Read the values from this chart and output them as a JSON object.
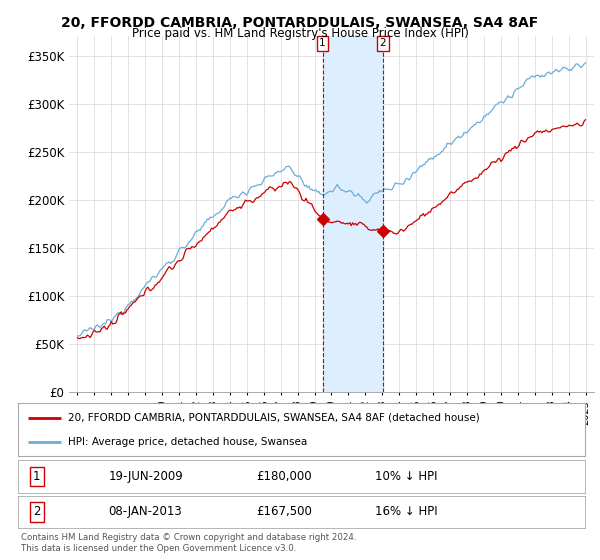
{
  "title": "20, FFORDD CAMBRIA, PONTARDDULAIS, SWANSEA, SA4 8AF",
  "subtitle": "Price paid vs. HM Land Registry's House Price Index (HPI)",
  "ylim": [
    0,
    370000
  ],
  "yticks": [
    0,
    50000,
    100000,
    150000,
    200000,
    250000,
    300000,
    350000
  ],
  "ytick_labels": [
    "£0",
    "£50K",
    "£100K",
    "£150K",
    "£200K",
    "£250K",
    "£300K",
    "£350K"
  ],
  "hpi_color": "#6baed6",
  "price_color": "#cc0000",
  "sale1_date": 2009.47,
  "sale1_price": 180000,
  "sale2_date": 2013.03,
  "sale2_price": 167500,
  "legend_line1": "20, FFORDD CAMBRIA, PONTARDDULAIS, SWANSEA, SA4 8AF (detached house)",
  "legend_line2": "HPI: Average price, detached house, Swansea",
  "table_row1": [
    "1",
    "19-JUN-2009",
    "£180,000",
    "10% ↓ HPI"
  ],
  "table_row2": [
    "2",
    "08-JAN-2013",
    "£167,500",
    "16% ↓ HPI"
  ],
  "footnote": "Contains HM Land Registry data © Crown copyright and database right 2024.\nThis data is licensed under the Open Government Licence v3.0.",
  "background_color": "#ffffff",
  "grid_color": "#dddddd",
  "span_color": "#ddeeff",
  "vline_color": "#cc0000"
}
